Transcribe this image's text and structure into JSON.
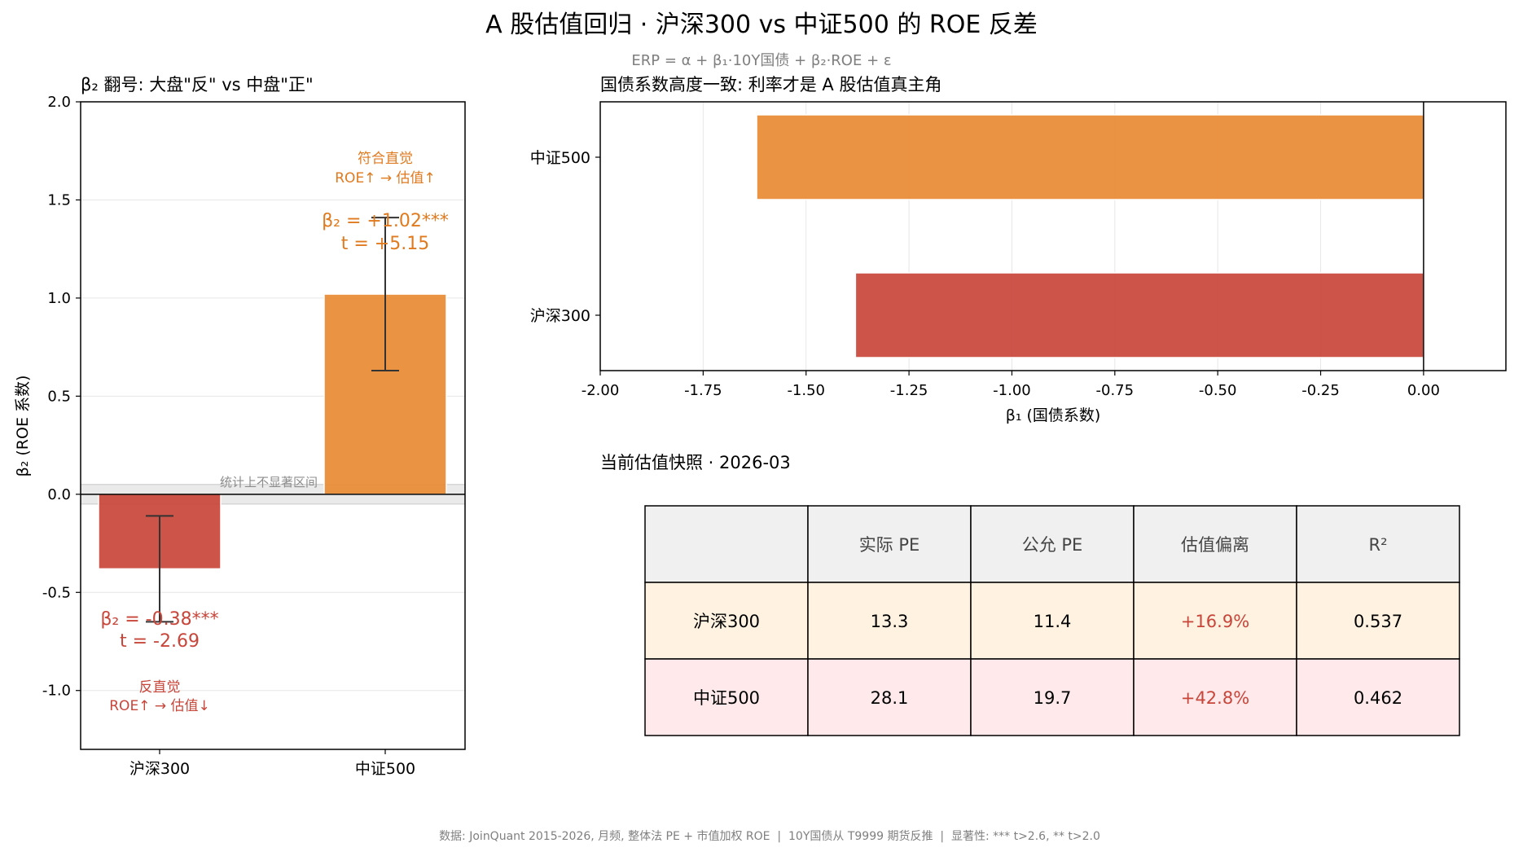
{
  "title": "A 股估值回归 · 沪深300 vs 中证500 的 ROE 反差",
  "formula": "ERP = α + β₁·10Y国债 + β₂·ROE + ε",
  "footer": "数据: JoinQuant 2015-2026, 月频, 整体法 PE + 市值加权 ROE  |  10Y国债从 T9999 期货反推  |  显著性: *** t>2.6, ** t>2.0",
  "colors": {
    "hs300": "#c8453a",
    "zz500": "#e88a33",
    "grey_text": "#7f7f7f"
  },
  "chart_data": [
    {
      "type": "bar",
      "title": "β₂ 翻号: 大盘\"反\" vs 中盘\"正\"",
      "categories": [
        "沪深300",
        "中证500"
      ],
      "values": [
        -0.38,
        1.02
      ],
      "errors": [
        0.27,
        0.39
      ],
      "ylabel": "β₂ (ROE 系数)",
      "ylim": [
        -1.3,
        2.0
      ],
      "yticks": [
        2.0,
        1.5,
        1.0,
        0.5,
        0.0,
        -0.5,
        -1.0
      ],
      "ytick_labels": [
        "2.0",
        "1.5",
        "1.0",
        "0.5",
        "0.0",
        "-0.5",
        "-1.0"
      ],
      "grid": true,
      "insignificant_band": [
        -0.05,
        0.05
      ],
      "insignificant_label": "统计上不显著区间",
      "annotations": {
        "hs300_coef": "β₂ = -0.38***",
        "hs300_t": "t = -2.69",
        "hs300_note1": "反直觉",
        "hs300_note2": "ROE↑ → 估值↓",
        "zz500_coef": "β₂ = +1.02***",
        "zz500_t": "t = +5.15",
        "zz500_note1": "符合直觉",
        "zz500_note2": "ROE↑ → 估值↑"
      }
    },
    {
      "type": "bar",
      "orientation": "horizontal",
      "title": "国债系数高度一致: 利率才是 A 股估值真主角",
      "categories": [
        "中证500",
        "沪深300"
      ],
      "values": [
        -1.62,
        -1.38
      ],
      "xlabel": "β₁ (国债系数)",
      "xlim": [
        -2.0,
        0.2
      ],
      "xticks": [
        -2.0,
        -1.75,
        -1.5,
        -1.25,
        -1.0,
        -0.75,
        -0.5,
        -0.25,
        0.0
      ],
      "xtick_labels": [
        "-2.00",
        "-1.75",
        "-1.50",
        "-1.25",
        "-1.00",
        "-0.75",
        "-0.50",
        "-0.25",
        "0.00"
      ],
      "grid": true
    },
    {
      "type": "table",
      "title": "当前估值快照 · 2026-03",
      "columns": [
        "",
        "实际 PE",
        "公允 PE",
        "估值偏离",
        "R²"
      ],
      "rows": [
        [
          "沪深300",
          "13.3",
          "11.4",
          "+16.9%",
          "0.537"
        ],
        [
          "中证500",
          "28.1",
          "19.7",
          "+42.8%",
          "0.462"
        ]
      ]
    }
  ]
}
